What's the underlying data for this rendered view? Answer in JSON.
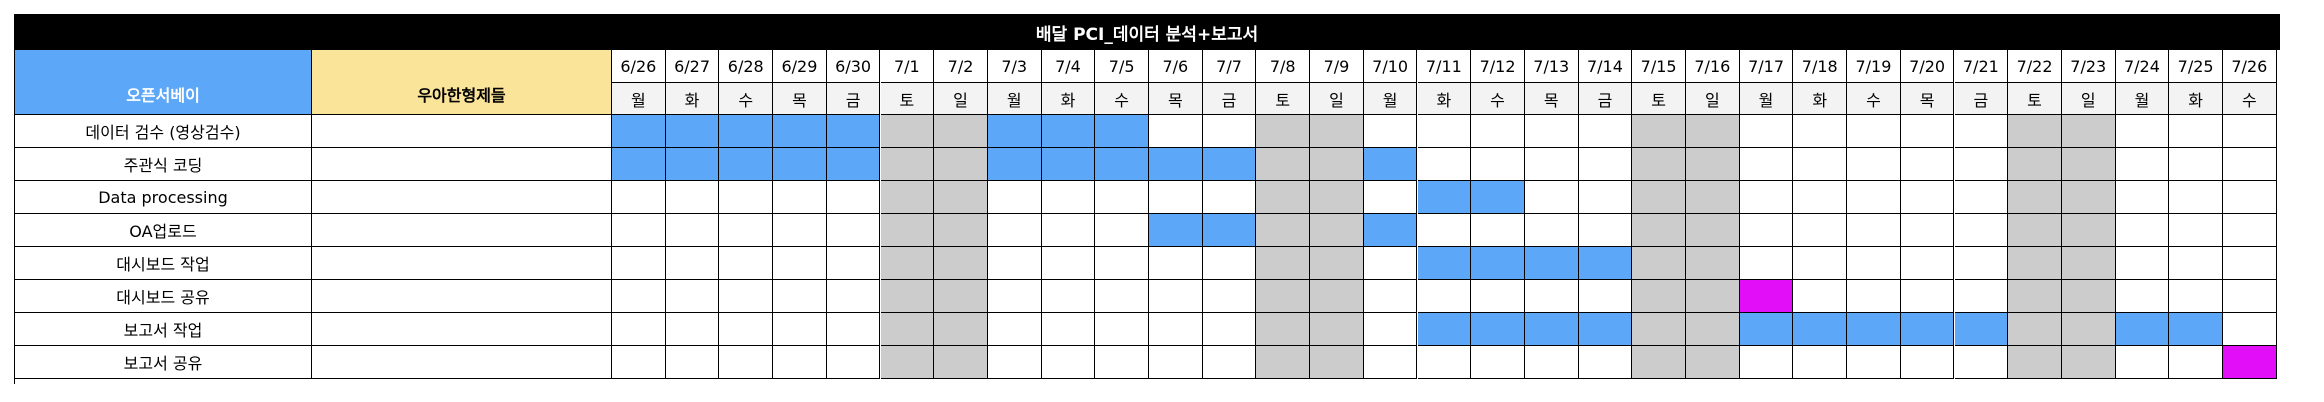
{
  "chart_data": {
    "type": "table",
    "title": "배달 PCI_데이터 분석+보고서",
    "header_left": "오픈서베이",
    "header_right": "우아한형제들",
    "dates": [
      "6/26",
      "6/27",
      "6/28",
      "6/29",
      "6/30",
      "7/1",
      "7/2",
      "7/3",
      "7/4",
      "7/5",
      "7/6",
      "7/7",
      "7/8",
      "7/9",
      "7/10",
      "7/11",
      "7/12",
      "7/13",
      "7/14",
      "7/15",
      "7/16",
      "7/17",
      "7/18",
      "7/19",
      "7/20",
      "7/21",
      "7/22",
      "7/23",
      "7/24",
      "7/25",
      "7/26"
    ],
    "weekdays": [
      "월",
      "화",
      "수",
      "목",
      "금",
      "토",
      "일",
      "월",
      "화",
      "수",
      "목",
      "금",
      "토",
      "일",
      "월",
      "화",
      "수",
      "목",
      "금",
      "토",
      "일",
      "월",
      "화",
      "수",
      "목",
      "금",
      "토",
      "일",
      "월",
      "화",
      "수"
    ],
    "weekend_days": [
      5,
      6,
      12,
      13,
      19,
      20,
      26,
      27
    ],
    "tasks": [
      {
        "name": "데이터 검수 (영상검수)",
        "blue_days": [
          0,
          1,
          2,
          3,
          4,
          7,
          8,
          9
        ],
        "magenta_days": []
      },
      {
        "name": "주관식 코딩",
        "blue_days": [
          0,
          1,
          2,
          3,
          4,
          7,
          8,
          9,
          10,
          11,
          14
        ],
        "magenta_days": []
      },
      {
        "name": "Data processing",
        "blue_days": [
          15,
          16
        ],
        "magenta_days": []
      },
      {
        "name": "OA업로드",
        "blue_days": [
          10,
          11,
          14
        ],
        "magenta_days": []
      },
      {
        "name": "대시보드 작업",
        "blue_days": [
          15,
          16,
          17,
          18
        ],
        "magenta_days": []
      },
      {
        "name": "대시보드 공유",
        "blue_days": [],
        "magenta_days": [
          21
        ]
      },
      {
        "name": "보고서 작업",
        "blue_days": [
          15,
          16,
          17,
          18,
          21,
          22,
          23,
          24,
          25,
          28,
          29
        ],
        "magenta_days": []
      },
      {
        "name": "보고서 공유",
        "blue_days": [],
        "magenta_days": [
          30
        ]
      }
    ],
    "colors": {
      "task": "#5da7f9",
      "milestone": "#e10ef7",
      "weekend": "#cccccc",
      "title_bg": "#000000",
      "header_left_bg": "#5da7f9",
      "header_right_bg": "#f9e49a"
    }
  }
}
